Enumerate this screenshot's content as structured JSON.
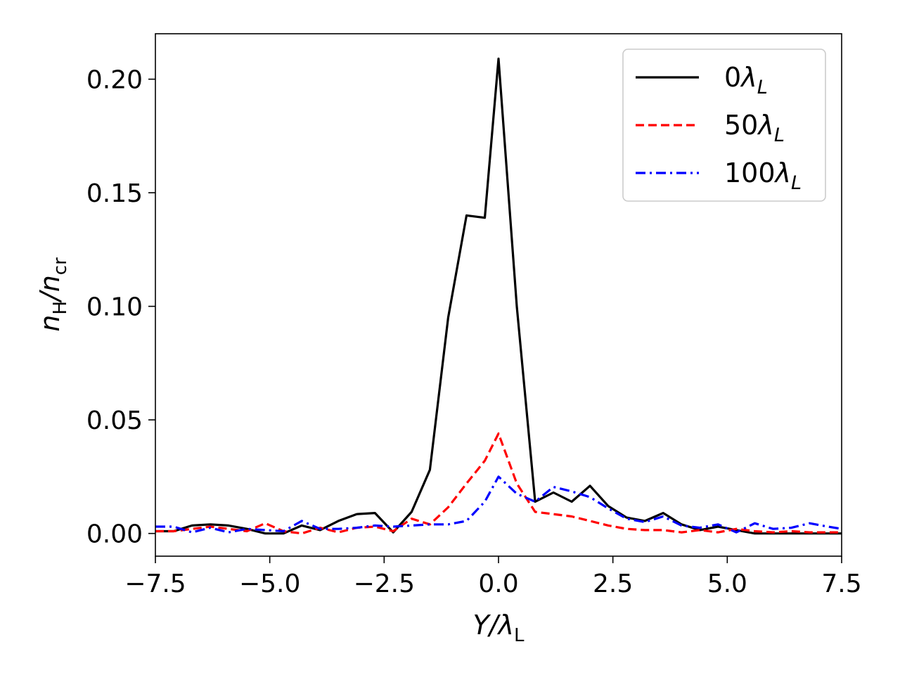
{
  "chart_data": {
    "type": "line",
    "xlabel": {
      "main": "Y/λ",
      "sub": "L"
    },
    "ylabel": {
      "a": "n",
      "a_sub": "H",
      "b": "/n",
      "b_sub": "cr"
    },
    "xlim": [
      -7.5,
      7.5
    ],
    "ylim": [
      -0.01,
      0.22
    ],
    "xticks": [
      -7.5,
      -5.0,
      -2.5,
      0.0,
      2.5,
      5.0,
      7.5
    ],
    "xtick_labels": [
      "−7.5",
      "−5.0",
      "−2.5",
      "0.0",
      "2.5",
      "5.0",
      "7.5"
    ],
    "yticks": [
      0.0,
      0.05,
      0.1,
      0.15,
      0.2
    ],
    "ytick_labels": [
      "0.00",
      "0.05",
      "0.10",
      "0.15",
      "0.20"
    ],
    "grid": false,
    "legend_position": "top-right",
    "x": [
      -7.5,
      -7.1,
      -6.7,
      -6.3,
      -5.9,
      -5.5,
      -5.1,
      -4.7,
      -4.3,
      -3.9,
      -3.5,
      -3.1,
      -2.7,
      -2.3,
      -1.9,
      -1.5,
      -1.1,
      -0.7,
      -0.3,
      0.0,
      0.4,
      0.8,
      1.2,
      1.6,
      2.0,
      2.4,
      2.8,
      3.2,
      3.6,
      4.0,
      4.4,
      4.8,
      5.2,
      5.6,
      6.0,
      6.4,
      6.8,
      7.2,
      7.5
    ],
    "series": [
      {
        "name": "0",
        "name_sub": "L",
        "color": "#000000",
        "dash": "solid",
        "values": [
          0.001,
          0.001,
          0.0035,
          0.004,
          0.0035,
          0.002,
          0.0,
          0.0,
          0.0035,
          0.0015,
          0.0055,
          0.0085,
          0.009,
          0.0005,
          0.0095,
          0.028,
          0.095,
          0.14,
          0.139,
          0.209,
          0.1,
          0.014,
          0.018,
          0.014,
          0.021,
          0.012,
          0.007,
          0.0055,
          0.009,
          0.004,
          0.0015,
          0.003,
          0.0015,
          0.0,
          0.0,
          0.0,
          0.0,
          0.0,
          0.0
        ]
      },
      {
        "name": "50",
        "name_sub": "L",
        "color": "#ff0000",
        "dash": "dashed",
        "values": [
          0.001,
          0.001,
          0.002,
          0.003,
          0.002,
          0.001,
          0.0045,
          0.001,
          0.0,
          0.0025,
          0.0005,
          0.0025,
          0.003,
          0.001,
          0.0065,
          0.004,
          0.0115,
          0.022,
          0.032,
          0.044,
          0.022,
          0.0095,
          0.0085,
          0.0075,
          0.0055,
          0.0035,
          0.002,
          0.0015,
          0.0015,
          0.0005,
          0.0015,
          0.0005,
          0.002,
          0.001,
          0.0005,
          0.001,
          0.0005,
          0.0005,
          0.0005
        ]
      },
      {
        "name": "100",
        "name_sub": "L",
        "color": "#0000ff",
        "dash": "dashdot",
        "values": [
          0.003,
          0.003,
          0.0005,
          0.0025,
          0.0005,
          0.002,
          0.0015,
          0.001,
          0.0055,
          0.002,
          0.002,
          0.0025,
          0.0035,
          0.003,
          0.0035,
          0.004,
          0.004,
          0.0055,
          0.014,
          0.025,
          0.0175,
          0.014,
          0.0205,
          0.0185,
          0.016,
          0.011,
          0.0065,
          0.005,
          0.0075,
          0.0035,
          0.0025,
          0.004,
          0.0005,
          0.0045,
          0.002,
          0.0025,
          0.0045,
          0.003,
          0.002
        ]
      }
    ]
  }
}
